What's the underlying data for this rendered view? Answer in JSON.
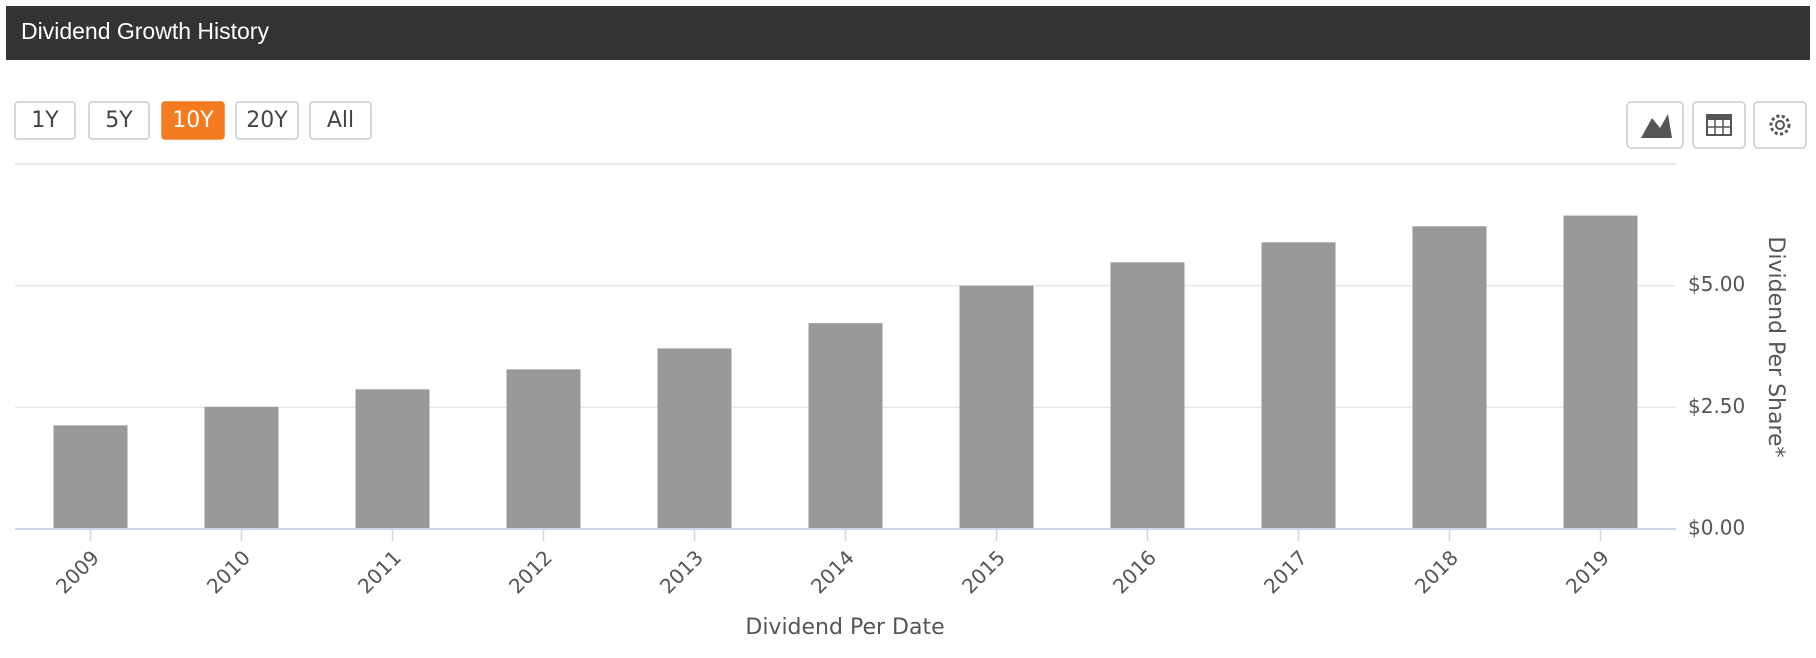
{
  "header": {
    "title": "Dividend Growth History"
  },
  "range_buttons": [
    "1Y",
    "5Y",
    "10Y",
    "20Y",
    "All"
  ],
  "active_range_index": 2,
  "chart_data": {
    "type": "bar",
    "categories": [
      "2009",
      "2010",
      "2011",
      "2012",
      "2013",
      "2014",
      "2015",
      "2016",
      "2017",
      "2018",
      "2019"
    ],
    "values": [
      2.13,
      2.51,
      2.87,
      3.28,
      3.71,
      4.23,
      5.0,
      5.48,
      5.89,
      6.22,
      6.44
    ],
    "color": "#999999",
    "x_label": "Dividend Per Date",
    "y_label": "Dividend Per Share*",
    "ylim": [
      0,
      7.5
    ],
    "yticks": [
      {
        "value": 0,
        "label": "$0.00"
      },
      {
        "value": 2.5,
        "label": "$2.50"
      },
      {
        "value": 5,
        "label": "$5.00"
      }
    ],
    "grid": true
  }
}
